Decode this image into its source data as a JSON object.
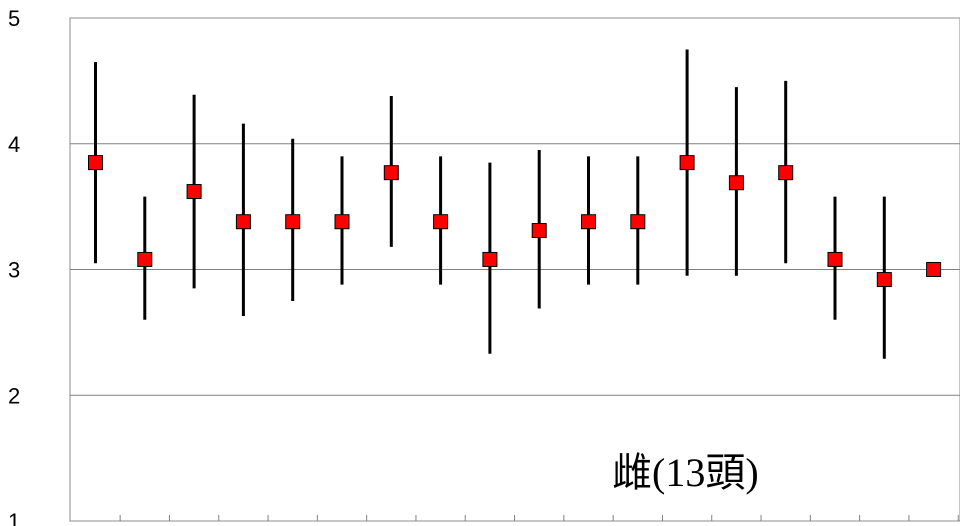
{
  "chart_data": {
    "type": "scatter",
    "title": "",
    "xlabel": "",
    "ylabel": "",
    "ylim": [
      1,
      5
    ],
    "y_ticks": [
      "1",
      "2",
      "3",
      "4",
      "5"
    ],
    "grid": true,
    "annotation": "雌(13頭)",
    "marker_color": "#ff0000",
    "errorbar_color": "#000000",
    "series": [
      {
        "x": [
          1,
          2,
          3,
          4,
          5,
          6,
          7,
          8,
          9,
          10,
          11,
          12,
          13,
          14,
          15,
          16,
          17,
          18
        ],
        "y": [
          3.85,
          3.08,
          3.62,
          3.38,
          3.38,
          3.38,
          3.77,
          3.38,
          3.08,
          3.31,
          3.38,
          3.38,
          3.85,
          3.69,
          3.77,
          3.08,
          2.92,
          3.0
        ],
        "y_low": [
          3.05,
          2.6,
          2.85,
          2.63,
          2.75,
          2.88,
          3.18,
          2.88,
          2.33,
          2.69,
          2.88,
          2.88,
          2.95,
          2.95,
          3.05,
          2.6,
          2.29,
          3.0
        ],
        "y_high": [
          4.65,
          3.58,
          4.39,
          4.16,
          4.04,
          3.9,
          4.38,
          3.9,
          3.85,
          3.95,
          3.9,
          3.9,
          4.75,
          4.45,
          4.5,
          3.58,
          3.58,
          3.0
        ]
      }
    ]
  }
}
